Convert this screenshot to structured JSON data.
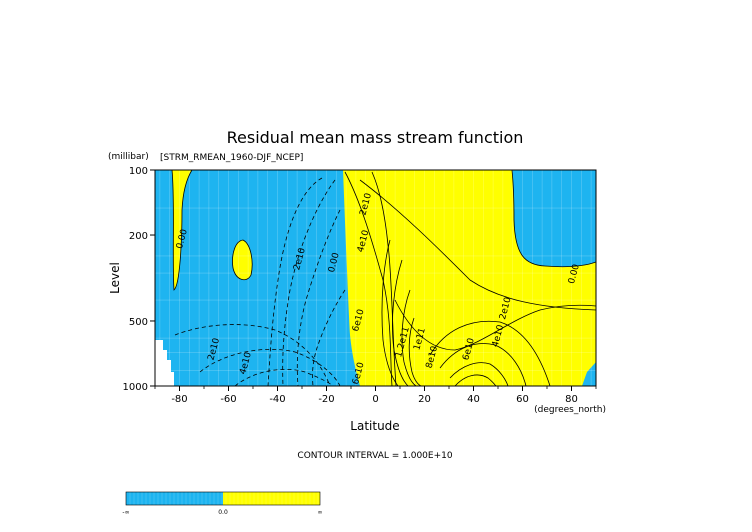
{
  "chart_data": {
    "type": "contour",
    "title": "Residual mean mass stream function",
    "dataset_label": "[STRM_RMEAN_1960-DJF_NCEP]",
    "xlabel": "Latitude",
    "x_units": "(degrees_north)",
    "ylabel": "Level",
    "y_units": "(millibar)",
    "xlim": [
      -90,
      90
    ],
    "ylim": [
      1000,
      100
    ],
    "y_scale": "log",
    "x_ticks": [
      "-80",
      "-60",
      "-40",
      "-20",
      "0",
      "20",
      "40",
      "60",
      "80"
    ],
    "y_ticks": [
      "100",
      "200",
      "500",
      "1000"
    ],
    "contour_interval_text": "CONTOUR INTERVAL = 1.000E+10",
    "contour_labels": [
      {
        "text": "0.00",
        "lat": -78,
        "lev": 210
      },
      {
        "text": "2e10",
        "lat": -30,
        "lev": 260
      },
      {
        "text": "0.00",
        "lat": -16,
        "lev": 270
      },
      {
        "text": "2e10",
        "lat": -65,
        "lev": 680
      },
      {
        "text": "4e10",
        "lat": -52,
        "lev": 790
      },
      {
        "text": "2e10",
        "lat": -3,
        "lev": 145
      },
      {
        "text": "4e10",
        "lat": -4,
        "lev": 215
      },
      {
        "text": "6e10",
        "lat": -6,
        "lev": 500
      },
      {
        "text": "1.2e11",
        "lat": 12,
        "lev": 630
      },
      {
        "text": "1e11",
        "lat": 19,
        "lev": 610
      },
      {
        "text": "8e10",
        "lat": 24,
        "lev": 740
      },
      {
        "text": "6e10",
        "lat": 39,
        "lev": 680
      },
      {
        "text": "4e10",
        "lat": 51,
        "lev": 590
      },
      {
        "text": "2e10",
        "lat": 54,
        "lev": 440
      },
      {
        "text": "0.00",
        "lat": 82,
        "lev": 305
      },
      {
        "text": "6e10",
        "lat": -6,
        "lev": 880
      }
    ],
    "colorbar": {
      "labels": [
        "-∞",
        "0.0",
        "∞"
      ],
      "negative_color": "#1eb4f0",
      "positive_color": "#ffff00"
    }
  }
}
